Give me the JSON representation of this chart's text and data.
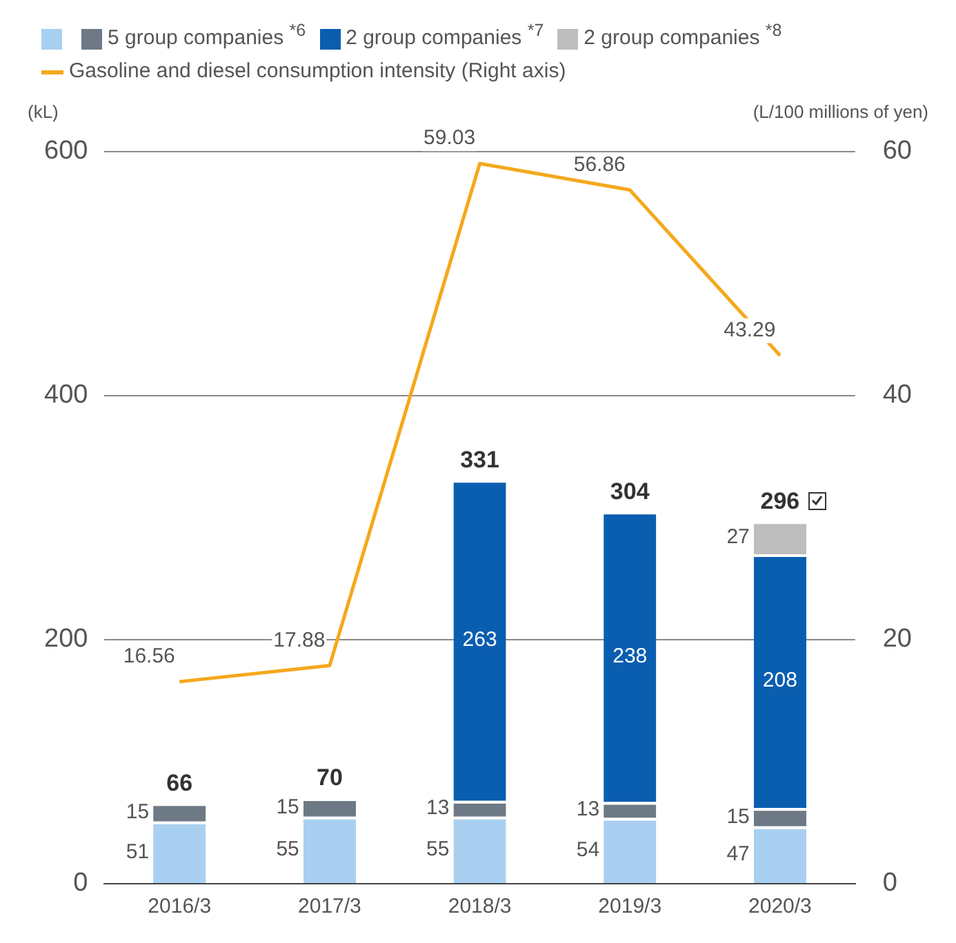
{
  "chart_data": {
    "type": "bar",
    "stacked": true,
    "categories": [
      "2016/3",
      "2017/3",
      "2018/3",
      "2019/3",
      "2020/3"
    ],
    "series": [
      {
        "color": "#a9d0f0",
        "values": [
          51,
          55,
          55,
          54,
          47
        ]
      },
      {
        "name": "5 group companies $^{*6}$",
        "color": "#6d7a85",
        "values": [
          15,
          15,
          13,
          13,
          15
        ]
      },
      {
        "name": "2 group companies $^{*7}$",
        "color": "#0a5eb0",
        "values": [
          null,
          null,
          263,
          238,
          208
        ]
      },
      {
        "name": "2 group companies $^{*8}$",
        "color": "#bdbdbd",
        "values": [
          null,
          null,
          null,
          null,
          27
        ]
      },
      {
        "name": "Gasoline and diesel consumption intensity (Right axis)",
        "type": "line",
        "axis": "y2",
        "color": "#f5a81c",
        "marker": "none",
        "line_style": "solid",
        "values": [
          16.56,
          17.88,
          59.03,
          56.86,
          43.29
        ]
      }
    ],
    "totals": [
      "66",
      "70",
      "331",
      "304",
      "296"
    ],
    "data_labels": true,
    "ylabel": "(kL)",
    "y2label": "(L/100 millions of yen)",
    "ylim": [
      0,
      600
    ],
    "yticks": [
      0,
      200,
      400,
      600
    ],
    "y2lim": [
      0,
      60
    ],
    "y2ticks": [
      0,
      20,
      40,
      60
    ],
    "grid": "y",
    "legend": "top left"
  }
}
